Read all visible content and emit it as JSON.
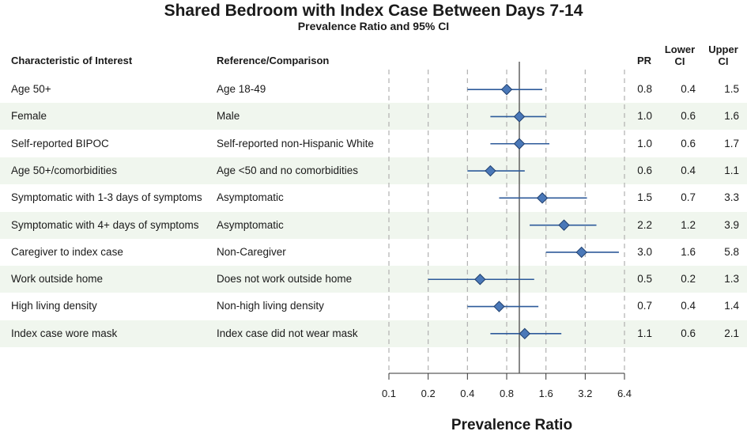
{
  "chart_data": {
    "type": "forest",
    "title": "Shared Bedroom with Index Case Between Days 7-14",
    "subtitle": "Prevalence Ratio and 95% CI",
    "xlabel": "Prevalence Ratio",
    "x_scale": "log2",
    "xlim": [
      0.1,
      6.4
    ],
    "ticks": [
      0.1,
      0.2,
      0.4,
      0.8,
      1.6,
      3.2,
      6.4
    ],
    "tick_labels": [
      "0.1",
      "0.2",
      "0.4",
      "0.8",
      "1.6",
      "3.2",
      "6.4"
    ],
    "reference_line": 1.0,
    "columns": {
      "characteristic": "Characteristic of Interest",
      "reference": "Reference/Comparison",
      "pr": "PR",
      "lower": "Lower CI",
      "upper": "Upper CI"
    },
    "rows": [
      {
        "characteristic": "Age 50+",
        "reference": "Age 18-49",
        "pr": 0.8,
        "lower": 0.4,
        "upper": 1.5,
        "pr_text": "0.8",
        "lower_text": "0.4",
        "upper_text": "1.5"
      },
      {
        "characteristic": "Female",
        "reference": "Male",
        "pr": 1.0,
        "lower": 0.6,
        "upper": 1.6,
        "pr_text": "1.0",
        "lower_text": "0.6",
        "upper_text": "1.6"
      },
      {
        "characteristic": "Self-reported BIPOC",
        "reference": "Self-reported non-Hispanic White",
        "pr": 1.0,
        "lower": 0.6,
        "upper": 1.7,
        "pr_text": "1.0",
        "lower_text": "0.6",
        "upper_text": "1.7"
      },
      {
        "characteristic": "Age 50+/comorbidities",
        "reference": "Age <50 and no comorbidities",
        "pr": 0.6,
        "lower": 0.4,
        "upper": 1.1,
        "pr_text": "0.6",
        "lower_text": "0.4",
        "upper_text": "1.1"
      },
      {
        "characteristic": "Symptomatic with 1-3 days of symptoms",
        "reference": "Asymptomatic",
        "pr": 1.5,
        "lower": 0.7,
        "upper": 3.3,
        "pr_text": "1.5",
        "lower_text": "0.7",
        "upper_text": "3.3"
      },
      {
        "characteristic": "Symptomatic with 4+ days of symptoms",
        "reference": "Asymptomatic",
        "pr": 2.2,
        "lower": 1.2,
        "upper": 3.9,
        "pr_text": "2.2",
        "lower_text": "1.2",
        "upper_text": "3.9"
      },
      {
        "characteristic": "Caregiver to index case",
        "reference": "Non-Caregiver",
        "pr": 3.0,
        "lower": 1.6,
        "upper": 5.8,
        "pr_text": "3.0",
        "lower_text": "1.6",
        "upper_text": "5.8"
      },
      {
        "characteristic": "Work outside home",
        "reference": "Does not work outside home",
        "pr": 0.5,
        "lower": 0.2,
        "upper": 1.3,
        "pr_text": "0.5",
        "lower_text": "0.2",
        "upper_text": "1.3"
      },
      {
        "characteristic": "High living density",
        "reference": "Non-high living density",
        "pr": 0.7,
        "lower": 0.4,
        "upper": 1.4,
        "pr_text": "0.7",
        "lower_text": "0.4",
        "upper_text": "1.4"
      },
      {
        "characteristic": "Index case wore mask",
        "reference": "Index case did not wear mask",
        "pr": 1.1,
        "lower": 0.6,
        "upper": 2.1,
        "pr_text": "1.1",
        "lower_text": "0.6",
        "upper_text": "2.1"
      }
    ]
  },
  "colors": {
    "marker": "#4a78b8",
    "marker_edge": "#1f3f6e",
    "ci_line": "#2d5a9a",
    "stripe": "#f0f6ee",
    "grid": "#b0b0b0"
  }
}
